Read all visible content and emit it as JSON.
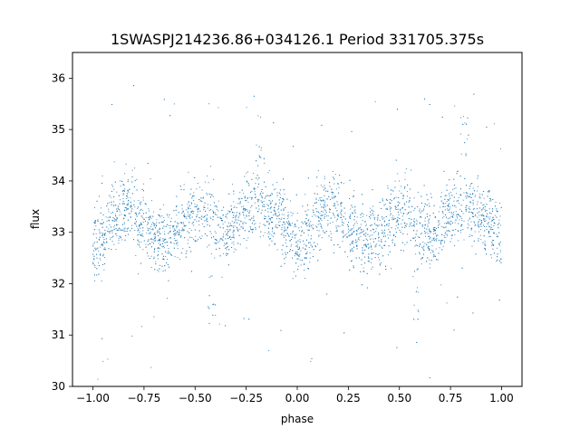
{
  "chart_data": {
    "type": "scatter",
    "title": "1SWASPJ214236.86+034126.1 Period 331705.375s",
    "xlabel": "phase",
    "ylabel": "flux",
    "xlim": [
      -1.1,
      1.1
    ],
    "ylim": [
      30,
      36.5
    ],
    "x_ticks": [
      -1.0,
      -0.75,
      -0.5,
      -0.25,
      0.0,
      0.25,
      0.5,
      0.75,
      1.0
    ],
    "x_tick_labels": [
      "−1.00",
      "−0.75",
      "−0.50",
      "−0.25",
      "0.00",
      "0.25",
      "0.50",
      "0.75",
      "1.00"
    ],
    "y_ticks": [
      30,
      31,
      32,
      33,
      34,
      35,
      36
    ],
    "y_tick_labels": [
      "30",
      "31",
      "32",
      "33",
      "34",
      "35",
      "36"
    ],
    "grid": false,
    "marker_color": "#1f77b4",
    "x_range_of_points": [
      -1.0,
      1.0
    ],
    "mean_flux_profile": {
      "phase": [
        0.0,
        0.05,
        0.1,
        0.15,
        0.2,
        0.25,
        0.3,
        0.35,
        0.4,
        0.45,
        0.5,
        0.55,
        0.6,
        0.65,
        0.7,
        0.75,
        0.8,
        0.85,
        0.9,
        0.95,
        1.0
      ],
      "flux": [
        32.75,
        32.9,
        33.3,
        33.45,
        33.5,
        33.05,
        32.95,
        32.85,
        32.9,
        33.3,
        33.4,
        33.5,
        33.1,
        32.9,
        33.2,
        33.45,
        33.5,
        33.45,
        33.35,
        33.1,
        32.75
      ]
    },
    "scatter_halfwidth": 0.45,
    "notes_on_features": [
      {
        "phase": -0.18,
        "flux_max": 35.3
      },
      {
        "phase": 0.82,
        "flux_max": 35.4
      },
      {
        "phase": -0.42,
        "flux_min": 31.2
      },
      {
        "phase": 0.58,
        "flux_min": 31.3
      }
    ]
  }
}
